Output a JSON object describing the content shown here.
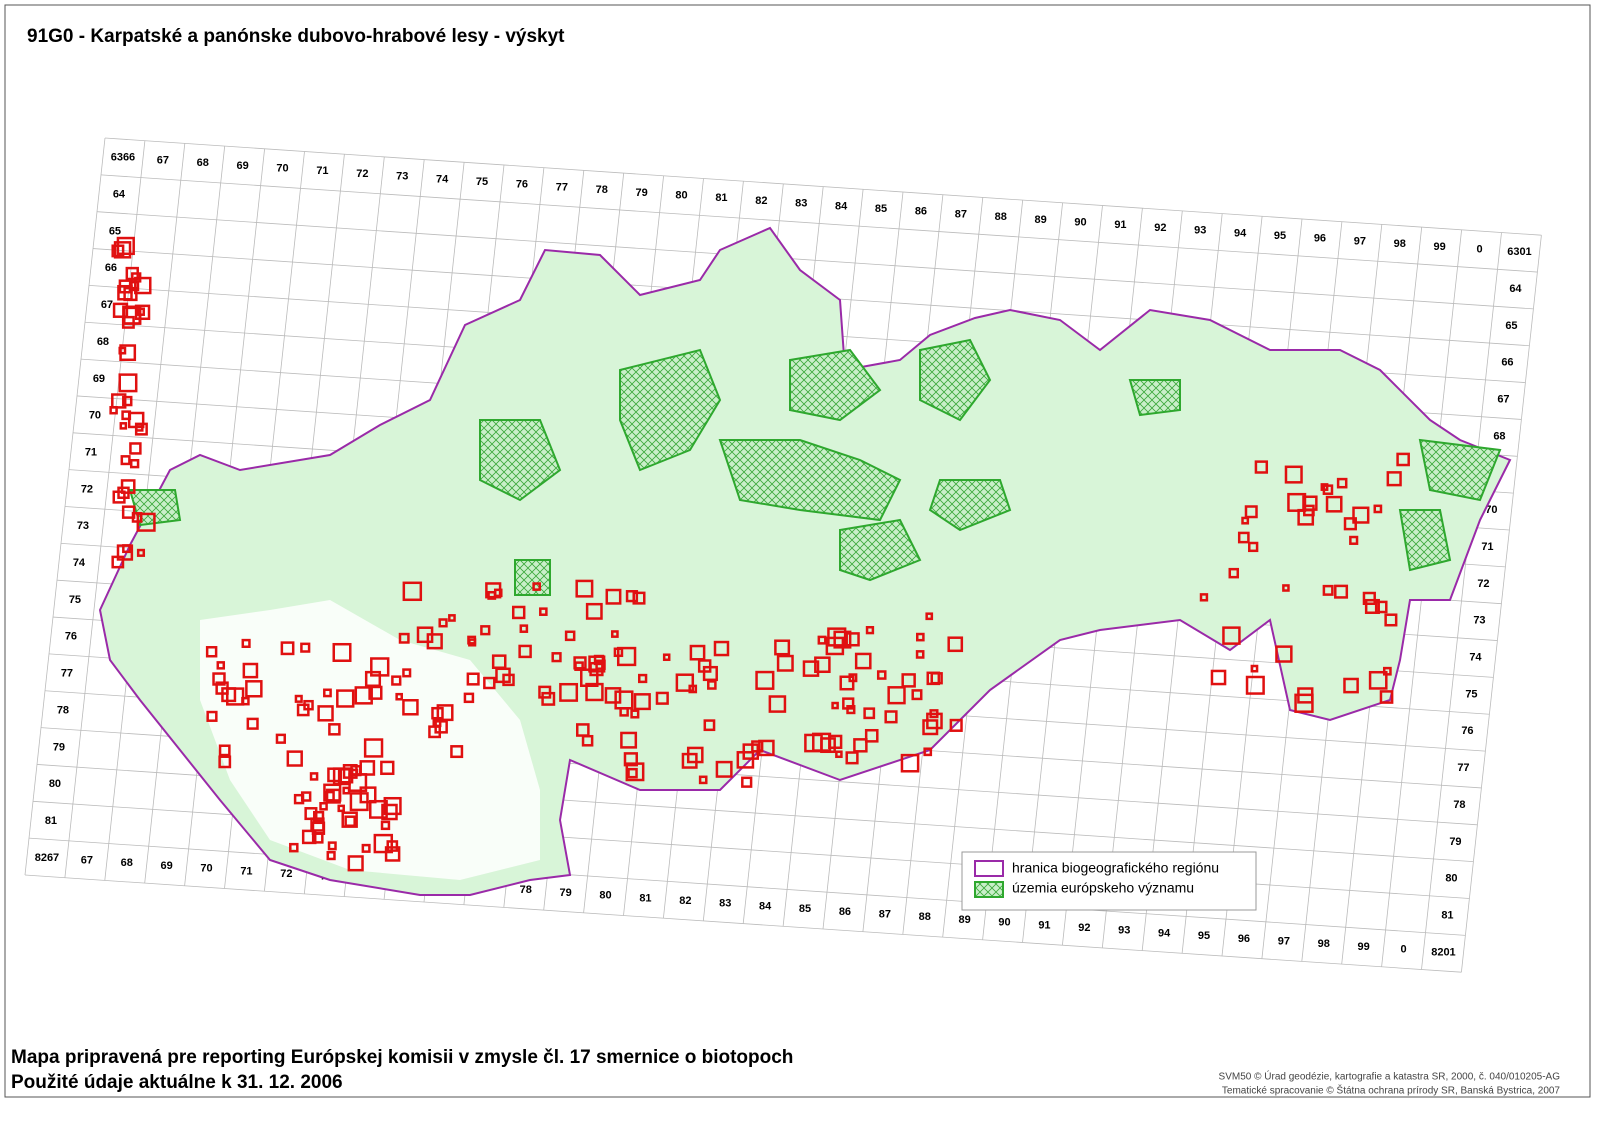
{
  "title": "91G0 - Karpatské a panónske dubovo-hrabové lesy - výskyt",
  "grid": {
    "top": [
      "6366",
      "67",
      "68",
      "69",
      "70",
      "71",
      "72",
      "73",
      "74",
      "75",
      "76",
      "77",
      "78",
      "79",
      "80",
      "81",
      "82",
      "83",
      "84",
      "85",
      "86",
      "87",
      "88",
      "89",
      "90",
      "91",
      "92",
      "93",
      "94",
      "95",
      "96",
      "97",
      "98",
      "99",
      "0",
      "6301"
    ],
    "left": [
      "64",
      "65",
      "66",
      "67",
      "68",
      "69",
      "70",
      "71",
      "72",
      "73",
      "74",
      "75",
      "76",
      "77",
      "78",
      "79",
      "80",
      "81"
    ],
    "right": [
      "64",
      "65",
      "66",
      "67",
      "68",
      "69",
      "70",
      "71",
      "72",
      "73",
      "74",
      "75",
      "76",
      "77",
      "78",
      "79",
      "80",
      "81"
    ],
    "bottom": [
      "8267",
      "67",
      "68",
      "69",
      "70",
      "71",
      "72",
      "73",
      "74",
      "75",
      "76",
      "77",
      "78",
      "79",
      "80",
      "81",
      "82",
      "83",
      "84",
      "85",
      "86",
      "87",
      "88",
      "89",
      "90",
      "91",
      "92",
      "93",
      "94",
      "95",
      "96",
      "97",
      "98",
      "99",
      "0",
      "8201"
    ]
  },
  "legend": [
    "hranica biogeografického regiónu",
    "územia európskeho významu"
  ],
  "footer": {
    "lines": [
      "Mapa pripravená pre reporting Európskej komisii v zmysle čl. 17 smernice o biotopoch",
      "Použité údaje aktuálne k 31. 12. 2006"
    ],
    "credits": [
      "SVM50 © Úrad geodézie, kartografie a katastra SR, 2000, č. 040/010205-AG",
      "Tematické spracovanie © Štátna ochrana prírody SR, Banská Bystrica, 2007"
    ]
  }
}
